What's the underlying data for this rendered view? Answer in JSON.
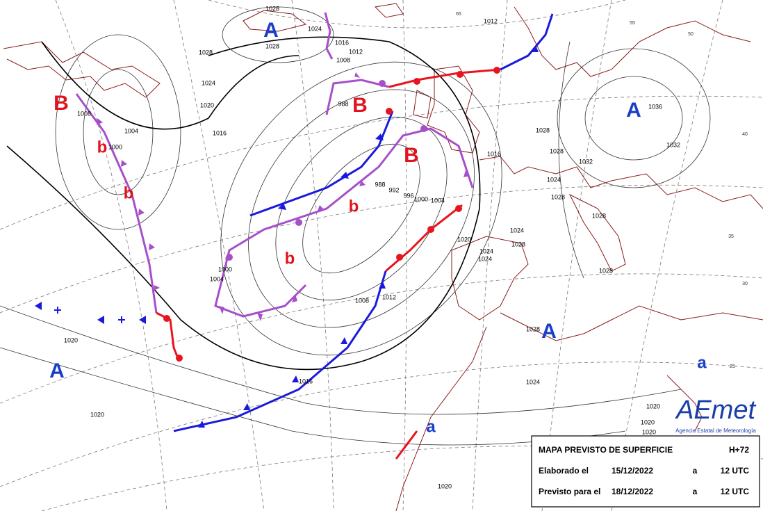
{
  "pressure_systems": [
    "A",
    "A",
    "A",
    "A",
    "a",
    "a",
    "B",
    "B",
    "B",
    "b",
    "b",
    "b",
    "b"
  ],
  "isobar_labels": [
    "1028",
    "1028",
    "1028",
    "1024",
    "1016",
    "1012",
    "1008",
    "1012",
    "1024",
    "1020",
    "1016",
    "1008",
    "1004",
    "1000",
    "988",
    "988",
    "992",
    "996",
    "1000",
    "1004",
    "1016",
    "1028",
    "1028",
    "1032",
    "1024",
    "1028",
    "1028",
    "1036",
    "1032",
    "1024",
    "1020",
    "1024",
    "1028",
    "1024",
    "1028",
    "1000",
    "1004",
    "1012",
    "1008",
    "1020",
    "1020",
    "1016",
    "1024",
    "1028",
    "1020",
    "1020",
    "1020",
    "1020"
  ],
  "grid_labels": [
    "65",
    "55",
    "50",
    "40",
    "35",
    "30",
    "25"
  ],
  "panel": {
    "title": "MAPA PREVISTO DE SUPERFICIE",
    "lead": "H+72",
    "rows": [
      [
        "Elaborado el",
        "15/12/2022",
        "a",
        "12 UTC"
      ],
      [
        "Previsto para el",
        "18/12/2022",
        "a",
        "12 UTC"
      ]
    ]
  },
  "logo": {
    "name": "AEmet",
    "subtitle": "Agencia Estatal de Meteorología"
  }
}
